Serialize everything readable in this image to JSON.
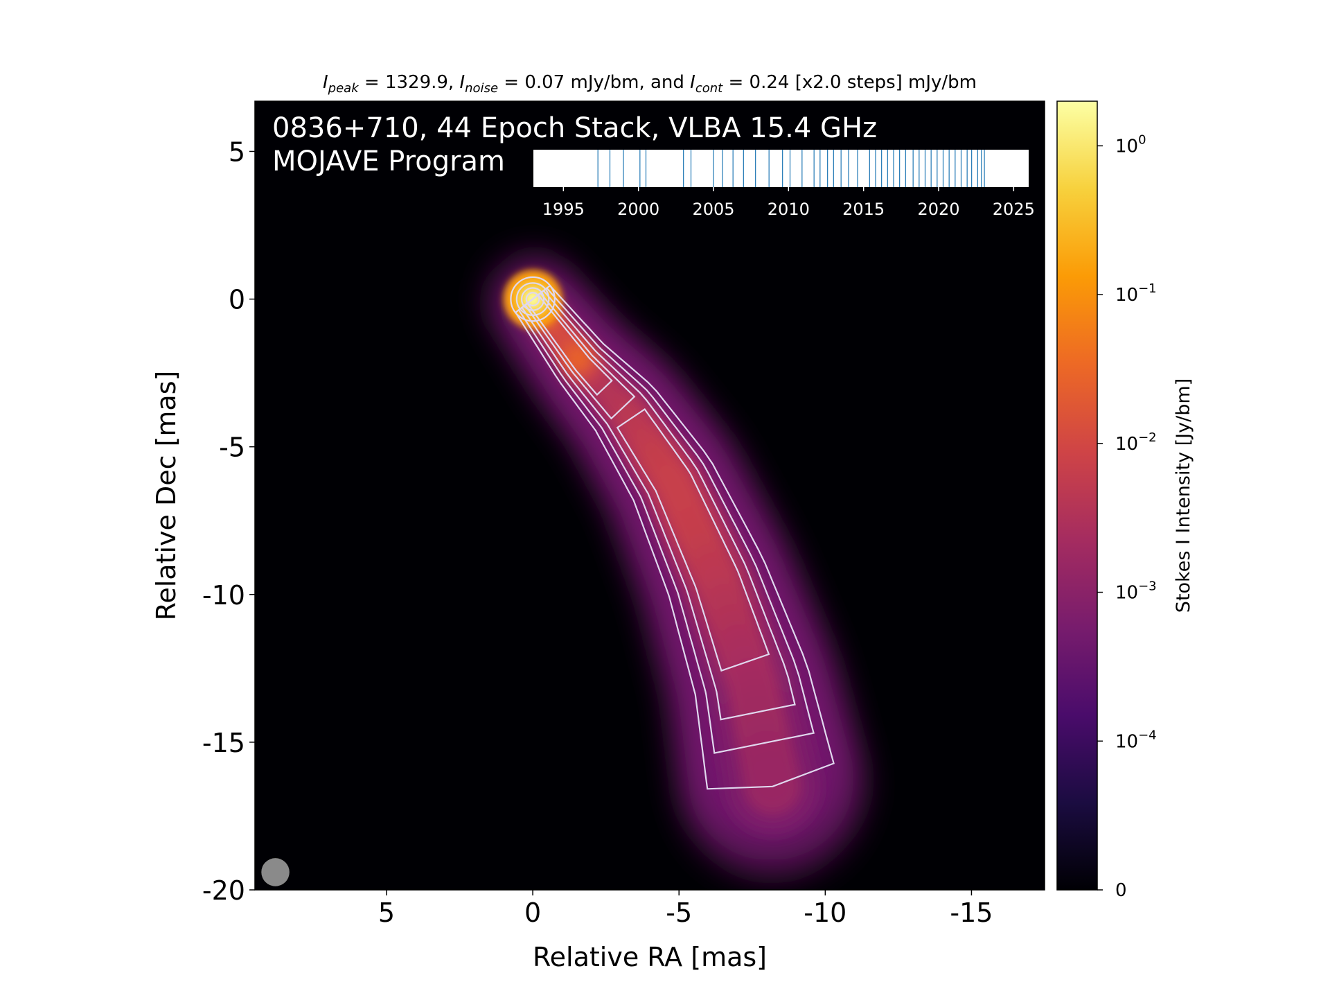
{
  "chart_data": {
    "type": "heatmap",
    "title_parts": {
      "i1": "I",
      "s1": "peak",
      "t1": " = 1329.9, ",
      "i2": "I",
      "s2": "noise",
      "t2": " = 0.07 mJy/bm, and ",
      "i3": "I",
      "s3": "cont",
      "t3": " = 0.24 [x2.0 steps] mJy/bm"
    },
    "source_label": "0836+710, 44 Epoch Stack, VLBA 15.4 GHz",
    "program_label": "MOJAVE Program",
    "xlabel": "Relative RA [mas]",
    "ylabel": "Relative Dec [mas]",
    "colorbar_label": "Stokes I Intensity [Jy/bm]",
    "xlim": [
      9.5,
      -17.5
    ],
    "ylim": [
      -20,
      6.7
    ],
    "x_ticks": [
      {
        "value": 5,
        "label": "5"
      },
      {
        "value": 0,
        "label": "0"
      },
      {
        "value": -5,
        "label": "-5"
      },
      {
        "value": -10,
        "label": "-10"
      },
      {
        "value": -15,
        "label": "-15"
      }
    ],
    "y_ticks": [
      {
        "value": 5,
        "label": "5"
      },
      {
        "value": 0,
        "label": "0"
      },
      {
        "value": -5,
        "label": "-5"
      },
      {
        "value": -10,
        "label": "-10"
      },
      {
        "value": -15,
        "label": "-15"
      },
      {
        "value": -20,
        "label": "-20"
      }
    ],
    "colorbar_ticks": [
      {
        "value": 1,
        "base": "10",
        "exp": "0"
      },
      {
        "value": 0.1,
        "base": "10",
        "exp": "−1"
      },
      {
        "value": 0.01,
        "base": "10",
        "exp": "−2"
      },
      {
        "value": 0.001,
        "base": "10",
        "exp": "−3"
      },
      {
        "value": 0.0001,
        "base": "10",
        "exp": "−4"
      },
      {
        "value": 0,
        "base": "0",
        "exp": ""
      }
    ],
    "colorbar_scale": "symlog",
    "colormap": [
      "#000004",
      "#1b0c41",
      "#4a0c6b",
      "#781c6d",
      "#a52c60",
      "#cf4446",
      "#ed6925",
      "#fb9b06",
      "#f7d13d",
      "#fcffa4"
    ],
    "peak_position": [
      0,
      0
    ],
    "jet_ridge": [
      [
        0,
        0
      ],
      [
        -1.7,
        -2.2
      ],
      [
        -3.2,
        -3.8
      ],
      [
        -4.8,
        -6.2
      ],
      [
        -6.3,
        -9.5
      ],
      [
        -7.5,
        -13
      ],
      [
        -8.2,
        -16.5
      ]
    ],
    "beam_diameter": 0.6,
    "beam_position": [
      8.8,
      -19.4
    ],
    "timeline": {
      "axis_min": 1993,
      "axis_max": 2026,
      "ticks": [
        {
          "value": 1995,
          "label": "1995"
        },
        {
          "value": 2000,
          "label": "2000"
        },
        {
          "value": 2005,
          "label": "2005"
        },
        {
          "value": 2010,
          "label": "2010"
        },
        {
          "value": 2015,
          "label": "2015"
        },
        {
          "value": 2020,
          "label": "2020"
        },
        {
          "value": 2025,
          "label": "2025"
        }
      ],
      "epochs": [
        1997.3,
        1998.1,
        1999.0,
        2000.1,
        2000.5,
        2003.0,
        2003.5,
        2005.0,
        2005.6,
        2006.3,
        2007.0,
        2007.8,
        2008.7,
        2009.6,
        2010.1,
        2010.9,
        2011.7,
        2012.1,
        2012.6,
        2013.0,
        2013.5,
        2014.0,
        2014.6,
        2015.4,
        2015.8,
        2016.2,
        2016.6,
        2017.0,
        2017.4,
        2017.8,
        2018.3,
        2018.7,
        2019.1,
        2019.5,
        2019.9,
        2020.3,
        2020.7,
        2021.1,
        2021.5,
        2021.9,
        2022.2,
        2022.6,
        2022.85,
        2023.05
      ],
      "line_color": "#1f77b4"
    }
  }
}
